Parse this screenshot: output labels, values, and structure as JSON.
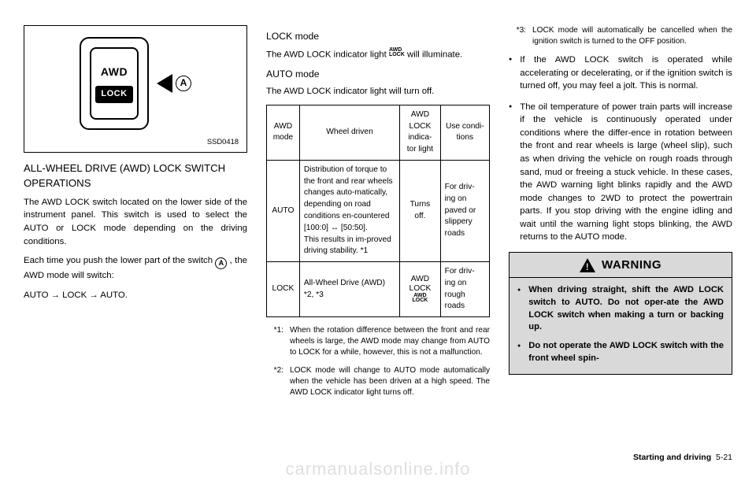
{
  "figure": {
    "label_awd": "AWD",
    "label_lock": "LOCK",
    "marker_letter": "A",
    "caption": "SSD0418"
  },
  "col1": {
    "heading": "ALL-WHEEL DRIVE (AWD) LOCK SWITCH OPERATIONS",
    "p1": "The AWD LOCK switch located on the lower side of the instrument panel. This switch is used to select the AUTO or LOCK mode depending on the driving conditions.",
    "p2a": "Each time you push the lower part of the switch ",
    "p2_marker": "A",
    "p2b": " , the AWD mode will switch:",
    "p3": "AUTO → LOCK → AUTO."
  },
  "col2": {
    "h_lock": "LOCK mode",
    "lock_p_a": "The AWD LOCK indicator light ",
    "lock_chip_l1": "AWD",
    "lock_chip_l2": "LOCK",
    "lock_p_b": " will illuminate.",
    "h_auto": "AUTO mode",
    "auto_p": "The AWD LOCK indicator light will turn off.",
    "table": {
      "headers": [
        "AWD mode",
        "Wheel driven",
        "AWD LOCK indica-tor light",
        "Use condi-tions"
      ],
      "rows": [
        {
          "mode": "AUTO",
          "driven": "Distribution of torque to the front and rear wheels changes auto-matically, depending on road conditions en-countered [100:0] ↔ [50:50].\nThis results in im-proved driving stability. *1",
          "indicator": "Turns off.",
          "use": "For driv-ing on paved or slippery roads"
        },
        {
          "mode": "LOCK",
          "driven": "All-Wheel Drive (AWD) *2, *3",
          "indicator_top": "AWD LOCK",
          "indicator_tiny1": "AWD",
          "indicator_tiny2": "LOCK",
          "use": "For driv-ing on rough roads"
        }
      ]
    },
    "fn1_label": "*1:",
    "fn1": "When the rotation difference between the front and rear wheels is large, the AWD mode may change from AUTO to LOCK for a while, however, this is not a malfunction.",
    "fn2_label": "*2:",
    "fn2": "LOCK mode will change to AUTO mode automatically when the vehicle has been driven at a high speed. The AWD LOCK indicator light turns off."
  },
  "col3": {
    "fn3_label": "*3:",
    "fn3": "LOCK mode will automatically be cancelled when the ignition switch is turned to the OFF position.",
    "b1": "If the AWD LOCK switch is operated while accelerating or decelerating, or if the ignition switch is turned off, you may feel a jolt. This is normal.",
    "b2": "The oil temperature of power train parts will increase if the vehicle is continuously operated under conditions where the differ-ence in rotation between the front and rear wheels is large (wheel slip), such as when driving the vehicle on rough roads through sand, mud or freeing a stuck vehicle. In these cases, the AWD warning light blinks rapidly and the AWD mode changes to 2WD to protect the powertrain parts. If you stop driving with the engine idling and wait until the warning light stops blinking, the AWD returns to the AUTO mode.",
    "warning_title": "WARNING",
    "w1": "When driving straight, shift the AWD LOCK switch to AUTO. Do not oper-ate the AWD LOCK switch when making a turn or backing up.",
    "w2": "Do not operate the AWD LOCK switch with the front wheel spin-"
  },
  "footer": {
    "section": "Starting and driving",
    "page": "5-21"
  },
  "watermark": "carmanualsonline.info"
}
